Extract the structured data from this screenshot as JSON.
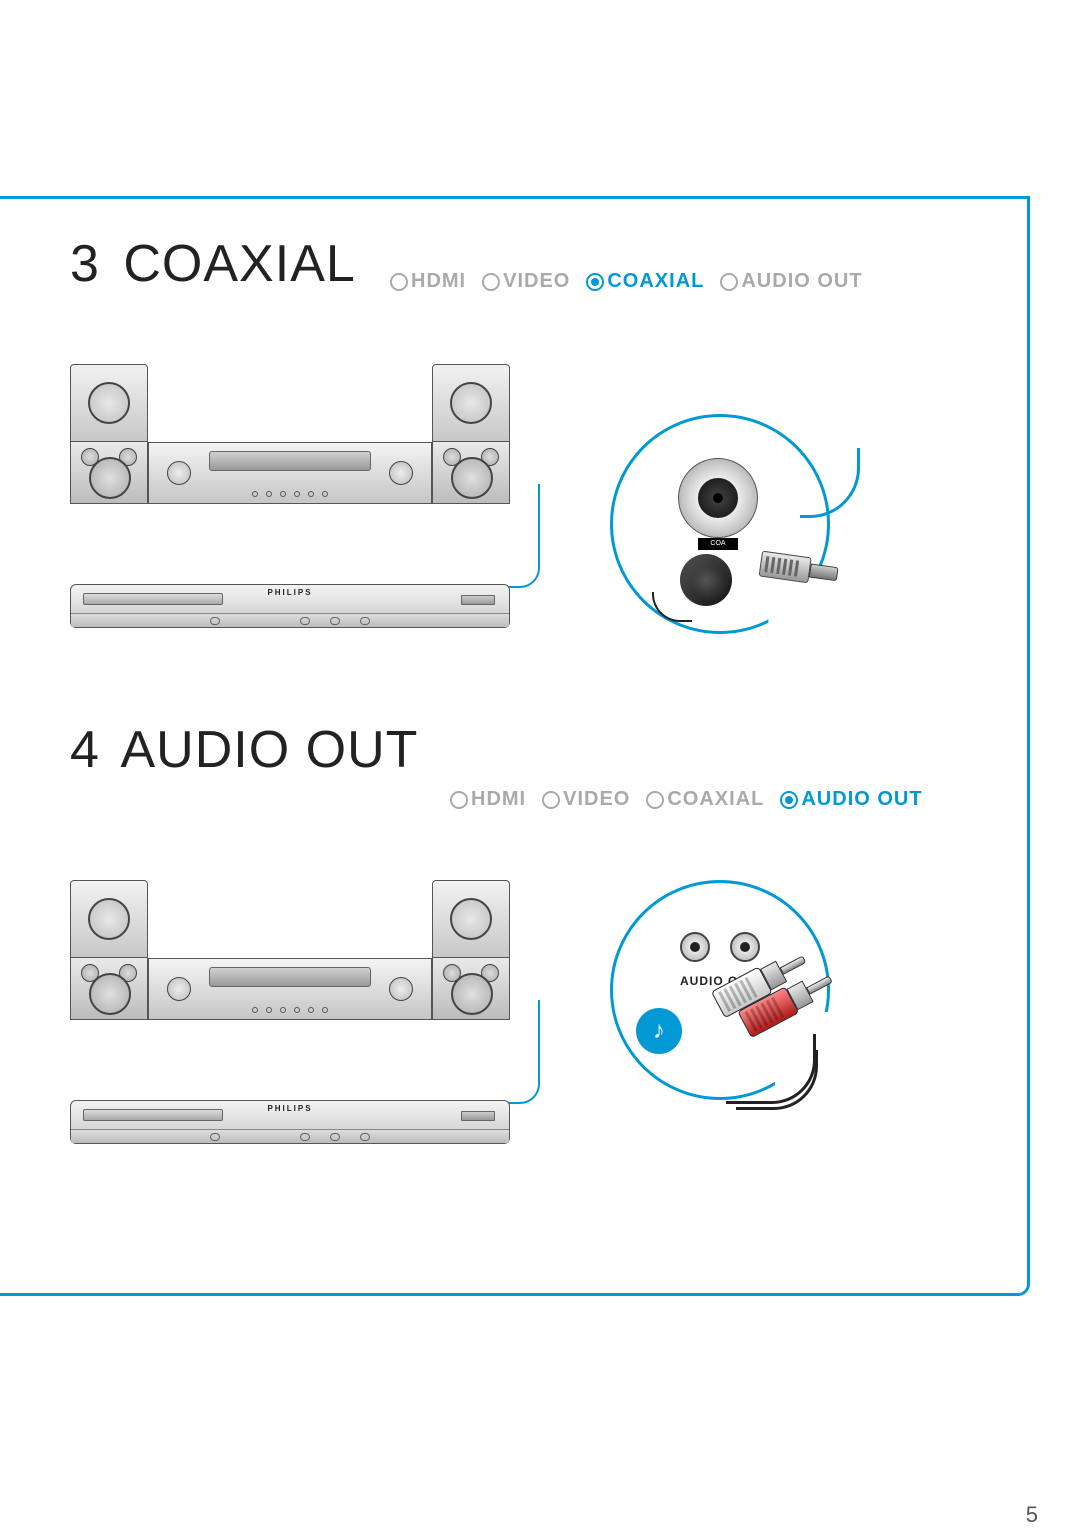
{
  "page_number": "5",
  "sections": [
    {
      "number": "3",
      "title": "COAXIAL",
      "options": [
        "HDMI",
        "VIDEO",
        "COAXIAL",
        "AUDIO OUT"
      ],
      "active_option": "COAXIAL",
      "callout_label": "COA"
    },
    {
      "number": "4",
      "title": "AUDIO OUT",
      "options": [
        "HDMI",
        "VIDEO",
        "COAXIAL",
        "AUDIO OUT"
      ],
      "active_option": "AUDIO OUT",
      "callout_label": "AUDIO OUT"
    }
  ],
  "brand": "PHILIPS",
  "colors": {
    "accent": "#0099d6",
    "text": "#222222",
    "inactive": "#aaaaaa",
    "rca_white": "#ffffff",
    "rca_red": "#c62020"
  }
}
